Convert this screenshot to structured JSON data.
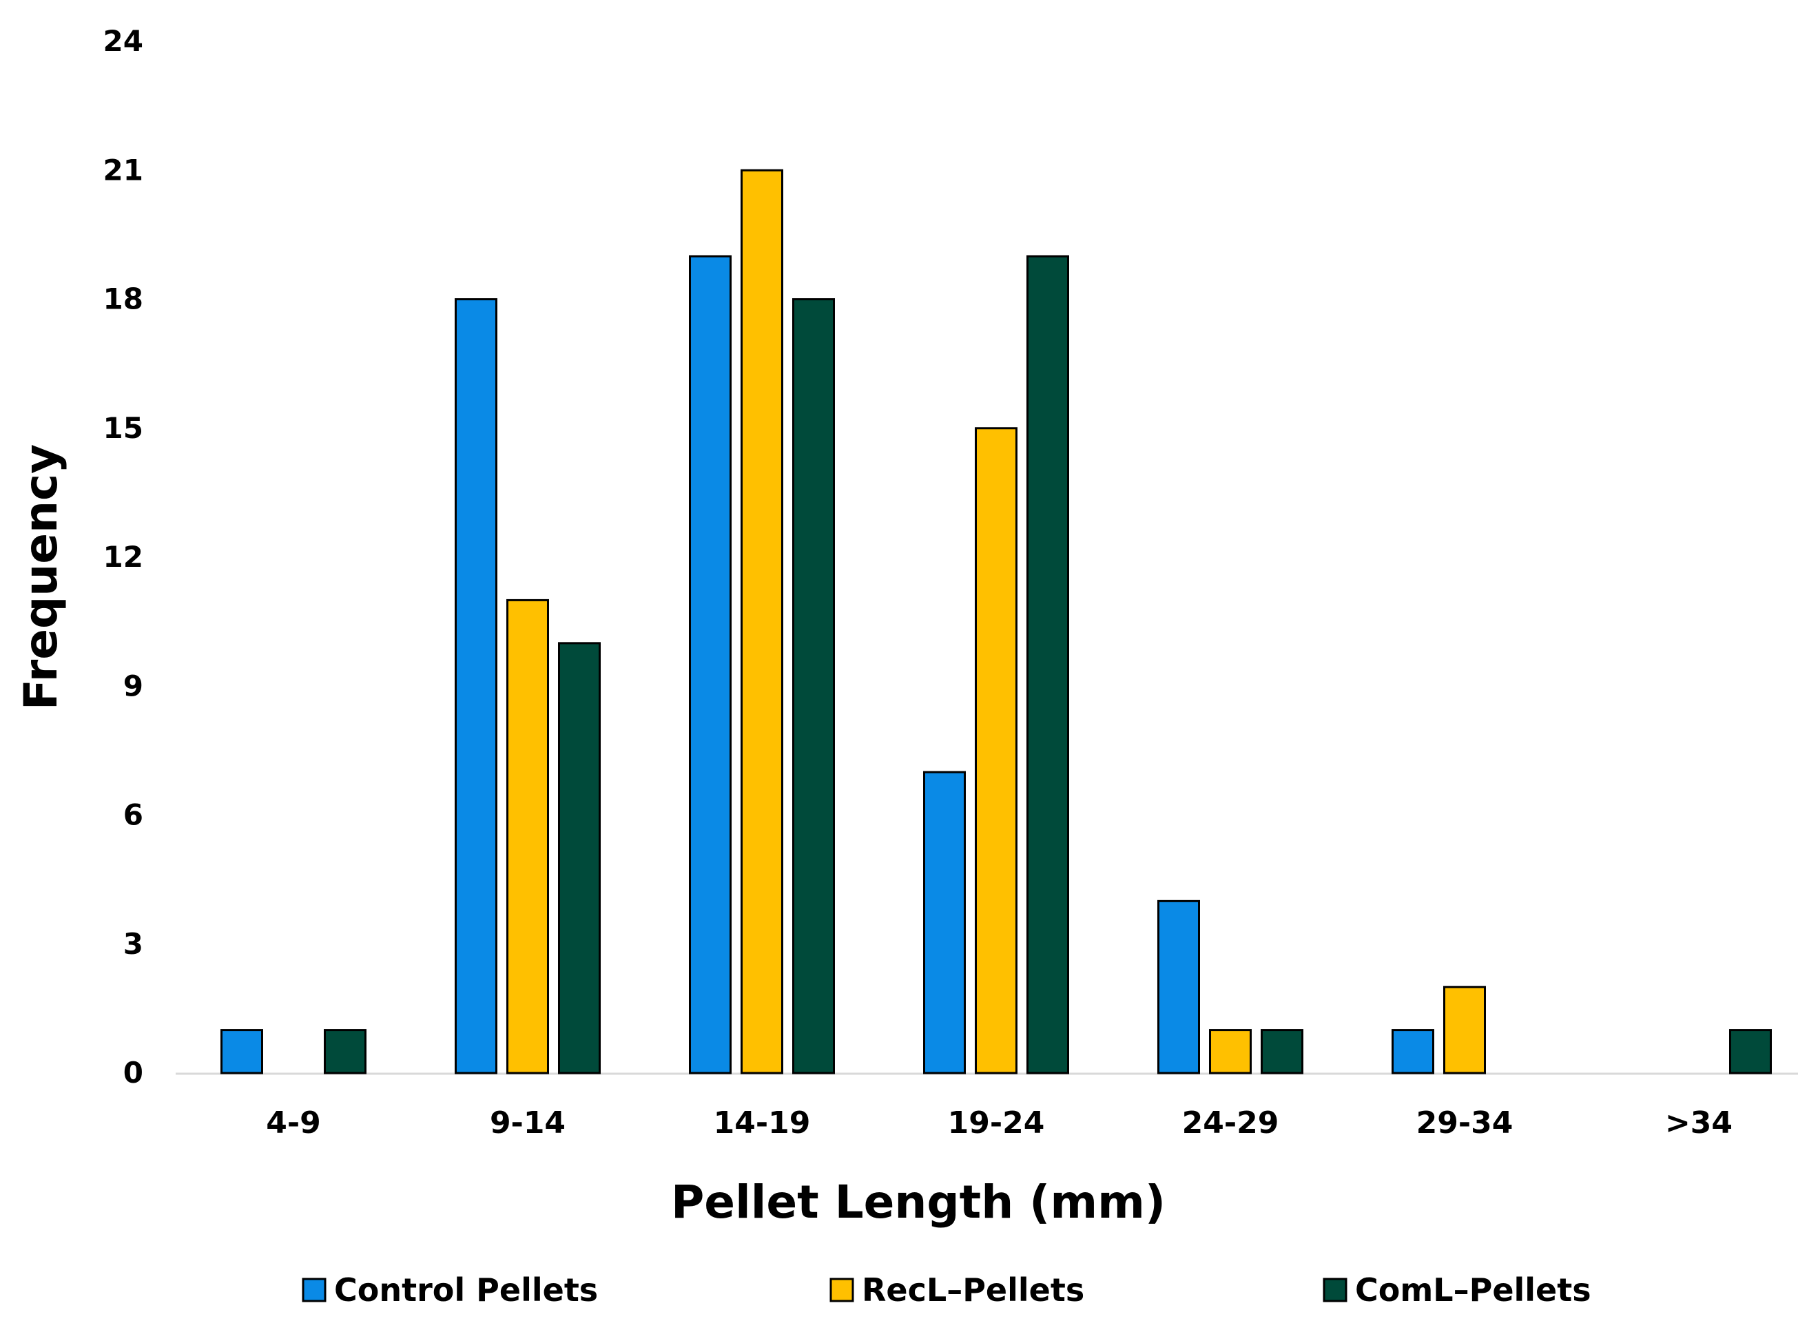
{
  "chart_data": {
    "type": "bar",
    "title": "",
    "xlabel": "Pellet Length (mm)",
    "ylabel": "Frequency",
    "ylim": [
      0,
      24
    ],
    "yticks": [
      0,
      3,
      6,
      9,
      12,
      15,
      18,
      21,
      24
    ],
    "grid": false,
    "legend_position": "bottom",
    "categories": [
      "4-9",
      "9-14",
      "14-19",
      "19-24",
      "24-29",
      "29-34",
      ">34"
    ],
    "series": [
      {
        "name": "Control Pellets",
        "color": "#0A8AE6",
        "values": [
          1,
          18,
          19,
          7,
          4,
          1,
          0
        ]
      },
      {
        "name": "RecL–Pellets",
        "color": "#FFC000",
        "values": [
          0,
          11,
          21,
          15,
          1,
          2,
          0
        ]
      },
      {
        "name": "ComL–Pellets",
        "color": "#004A3A",
        "values": [
          1,
          10,
          18,
          19,
          1,
          0,
          1
        ]
      }
    ]
  }
}
